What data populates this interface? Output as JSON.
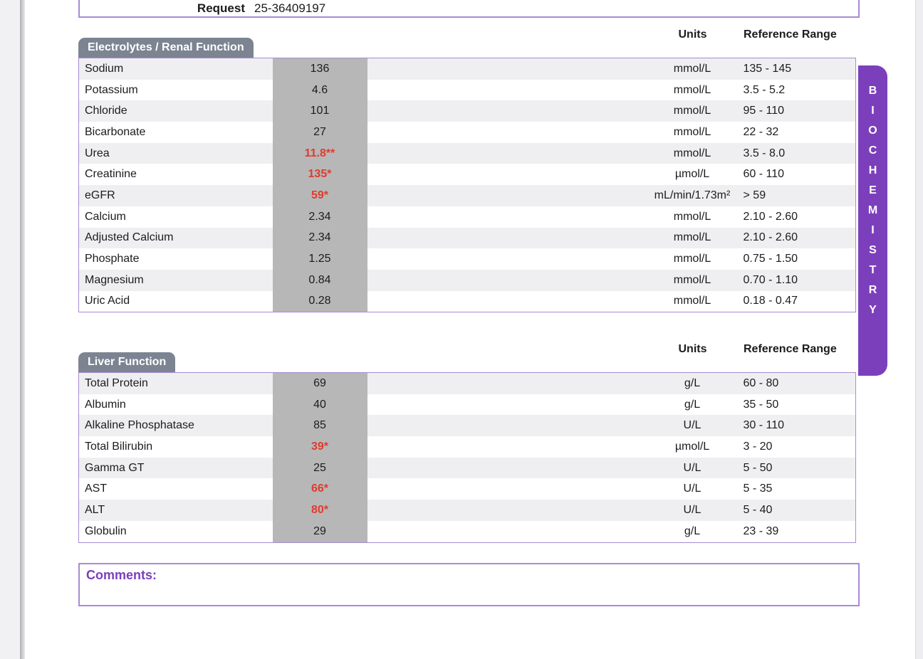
{
  "request": {
    "label": "Request",
    "value": "25-36409197"
  },
  "columns": {
    "units": "Units",
    "reference": "Reference Range"
  },
  "sections": [
    {
      "title": "Electrolytes / Renal Function",
      "rows": [
        {
          "name": "Sodium",
          "value": "136",
          "abnormal": false,
          "units": "mmol/L",
          "range": "135 - 145"
        },
        {
          "name": "Potassium",
          "value": "4.6",
          "abnormal": false,
          "units": "mmol/L",
          "range": "3.5 - 5.2"
        },
        {
          "name": "Chloride",
          "value": "101",
          "abnormal": false,
          "units": "mmol/L",
          "range": "95 - 110"
        },
        {
          "name": "Bicarbonate",
          "value": "27",
          "abnormal": false,
          "units": "mmol/L",
          "range": "22 - 32"
        },
        {
          "name": "Urea",
          "value": "11.8**",
          "abnormal": true,
          "units": "mmol/L",
          "range": "3.5 - 8.0"
        },
        {
          "name": "Creatinine",
          "value": "135*",
          "abnormal": true,
          "units": "µmol/L",
          "range": "60 - 110"
        },
        {
          "name": "eGFR",
          "value": "59*",
          "abnormal": true,
          "units": "mL/min/1.73m²",
          "range": "> 59"
        },
        {
          "name": "Calcium",
          "value": "2.34",
          "abnormal": false,
          "units": "mmol/L",
          "range": "2.10 - 2.60"
        },
        {
          "name": "Adjusted Calcium",
          "value": "2.34",
          "abnormal": false,
          "units": "mmol/L",
          "range": "2.10 - 2.60"
        },
        {
          "name": "Phosphate",
          "value": "1.25",
          "abnormal": false,
          "units": "mmol/L",
          "range": "0.75 - 1.50"
        },
        {
          "name": "Magnesium",
          "value": "0.84",
          "abnormal": false,
          "units": "mmol/L",
          "range": "0.70 - 1.10"
        },
        {
          "name": "Uric Acid",
          "value": "0.28",
          "abnormal": false,
          "units": "mmol/L",
          "range": "0.18 - 0.47"
        }
      ]
    },
    {
      "title": "Liver Function",
      "rows": [
        {
          "name": "Total Protein",
          "value": "69",
          "abnormal": false,
          "units": "g/L",
          "range": "60 - 80"
        },
        {
          "name": "Albumin",
          "value": "40",
          "abnormal": false,
          "units": "g/L",
          "range": "35 - 50"
        },
        {
          "name": "Alkaline Phosphatase",
          "value": "85",
          "abnormal": false,
          "units": "U/L",
          "range": "30 - 110"
        },
        {
          "name": "Total Bilirubin",
          "value": "39*",
          "abnormal": true,
          "units": "µmol/L",
          "range": "3 - 20"
        },
        {
          "name": "Gamma GT",
          "value": "25",
          "abnormal": false,
          "units": "U/L",
          "range": "5 - 50"
        },
        {
          "name": "AST",
          "value": "66*",
          "abnormal": true,
          "units": "U/L",
          "range": "5 - 35"
        },
        {
          "name": "ALT",
          "value": "80*",
          "abnormal": true,
          "units": "U/L",
          "range": "5 - 40"
        },
        {
          "name": "Globulin",
          "value": "29",
          "abnormal": false,
          "units": "g/L",
          "range": "23 - 39"
        }
      ]
    }
  ],
  "side_tab": {
    "label": "BIOCHEMISTRY"
  },
  "comments": {
    "label": "Comments:"
  },
  "colors": {
    "border_purple": "#a98bd5",
    "tab_purple": "#7c3fbc",
    "section_tab_gray": "#7c8492",
    "value_column_gray": "#b7b7b7",
    "row_stripe": "#efeff1",
    "abnormal_red": "#e03b2e"
  }
}
